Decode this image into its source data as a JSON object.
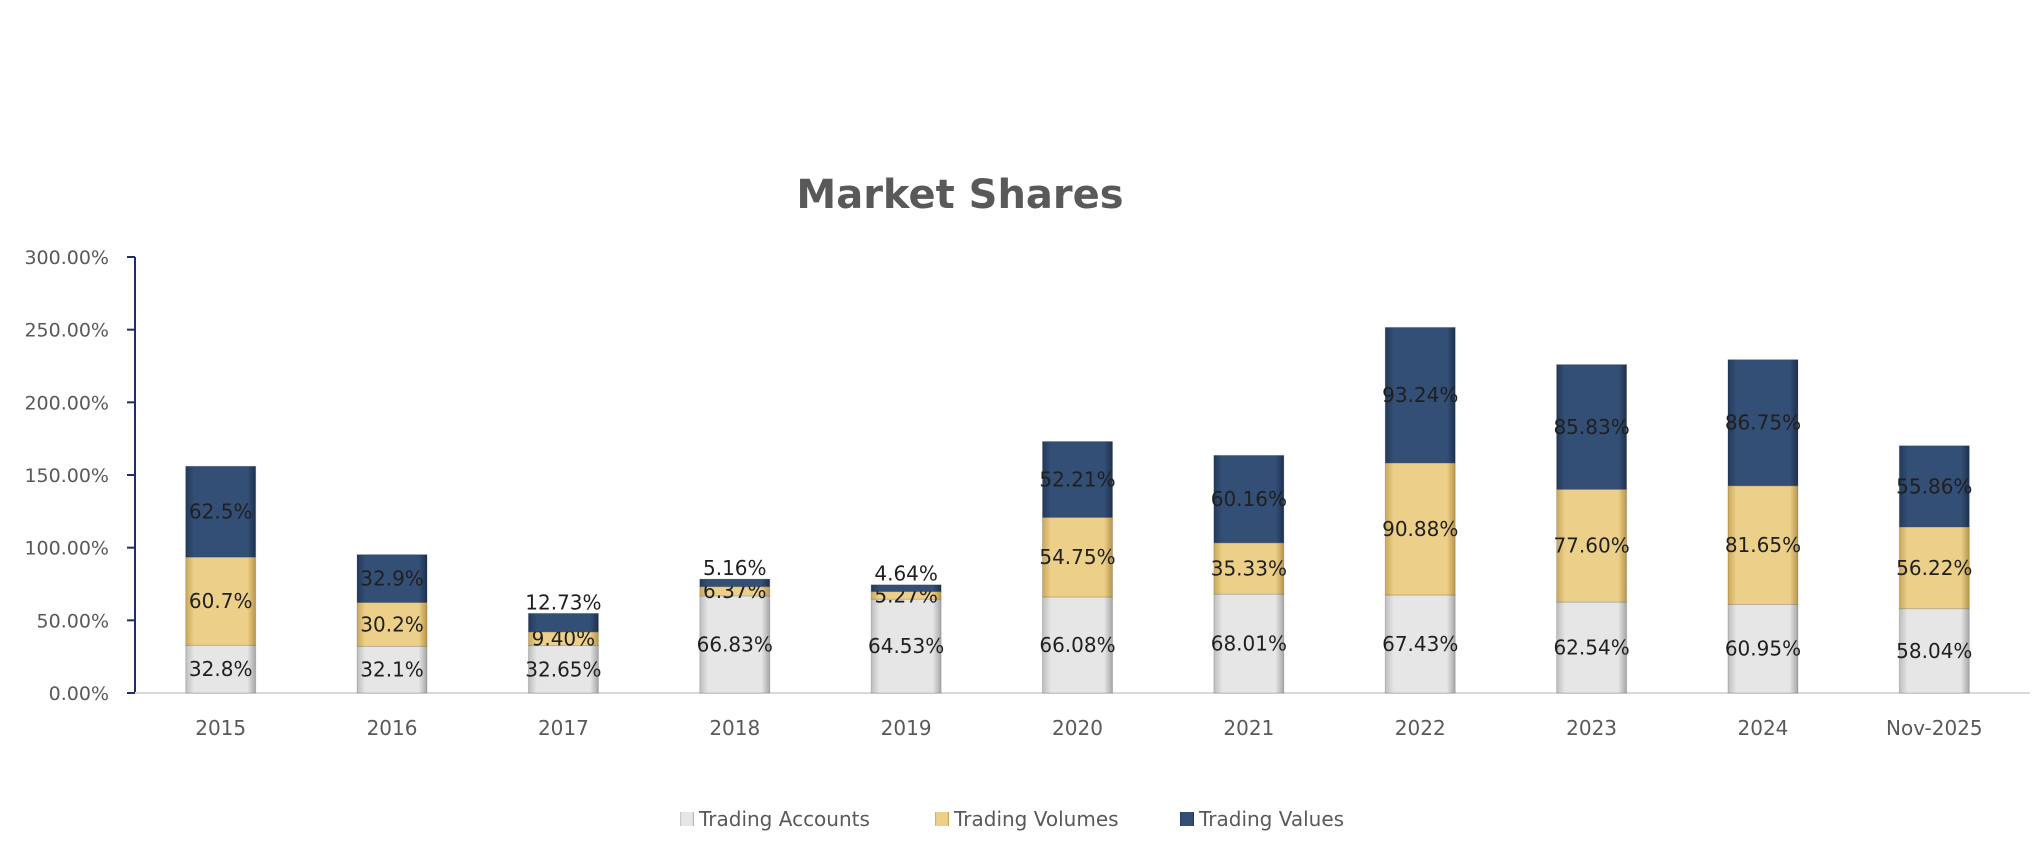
{
  "chart_data": {
    "type": "bar",
    "stacked": true,
    "title": "Market Shares",
    "xlabel": "",
    "ylabel": "",
    "ylim": [
      0,
      300
    ],
    "yticks": [
      "0.00%",
      "50.00%",
      "100.00%",
      "150.00%",
      "200.00%",
      "250.00%",
      "300.00%"
    ],
    "categories": [
      "2015",
      "2016",
      "2017",
      "2018",
      "2019",
      "2020",
      "2021",
      "2022",
      "2023",
      "2024",
      "Nov-2025"
    ],
    "series": [
      {
        "name": "Trading Accounts",
        "color": "#d9d9d9",
        "values": [
          32.8,
          32.1,
          32.65,
          66.83,
          64.53,
          66.08,
          68.01,
          67.43,
          62.54,
          60.95,
          58.04
        ],
        "labels": [
          "32.8%",
          "32.1%",
          "32.65%",
          "66.83%",
          "64.53%",
          "66.08%",
          "68.01%",
          "67.43%",
          "62.54%",
          "60.95%",
          "58.04%"
        ]
      },
      {
        "name": "Trading Volumes",
        "color": "#e8c979",
        "values": [
          60.7,
          30.2,
          9.4,
          6.37,
          5.27,
          54.75,
          35.33,
          90.88,
          77.6,
          81.65,
          56.22
        ],
        "labels": [
          "60.7%",
          "30.2%",
          "9.40%",
          "6.37%",
          "5.27%",
          "54.75%",
          "35.33%",
          "90.88%",
          "77.60%",
          "81.65%",
          "56.22%"
        ]
      },
      {
        "name": "Trading Values",
        "color": "#2e4a70",
        "values": [
          62.5,
          32.9,
          12.73,
          5.16,
          4.64,
          52.21,
          60.16,
          93.24,
          85.83,
          86.75,
          55.86
        ],
        "labels": [
          "62.5%",
          "32.9%",
          "12.73%",
          "5.16%",
          "4.64%",
          "52.21%",
          "60.16%",
          "93.24%",
          "85.83%",
          "86.75%",
          "55.86%"
        ]
      }
    ],
    "grid": false,
    "legend_position": "bottom"
  }
}
